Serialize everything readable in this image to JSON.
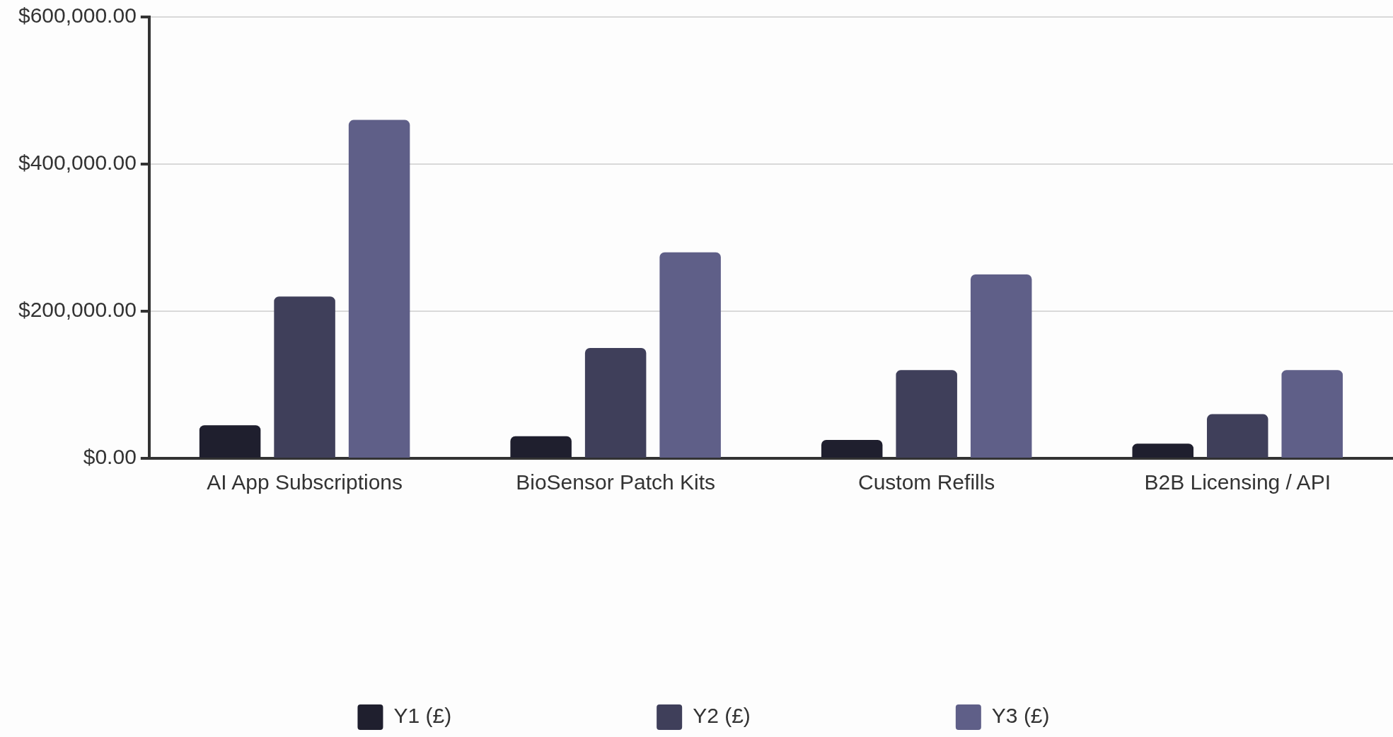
{
  "chart_data": {
    "type": "bar",
    "categories": [
      "AI App Subscriptions",
      "BioSensor Patch Kits",
      "Custom Refills",
      "B2B Licensing / API"
    ],
    "series": [
      {
        "name": "Y1 (£)",
        "color": "#1f1f2e",
        "values": [
          45000,
          30000,
          25000,
          20000
        ]
      },
      {
        "name": "Y2 (£)",
        "color": "#3f3f5a",
        "values": [
          220000,
          150000,
          120000,
          60000
        ]
      },
      {
        "name": "Y3 (£)",
        "color": "#5f5f88",
        "values": [
          460000,
          280000,
          250000,
          120000
        ]
      }
    ],
    "ylim": [
      0,
      600000
    ],
    "yticks": [
      {
        "value": 0,
        "label": "$0.00"
      },
      {
        "value": 200000,
        "label": "$200,000.00"
      },
      {
        "value": 400000,
        "label": "$400,000.00"
      },
      {
        "value": 600000,
        "label": "$600,000.00"
      }
    ],
    "grid": "y",
    "legend": "bottom"
  }
}
